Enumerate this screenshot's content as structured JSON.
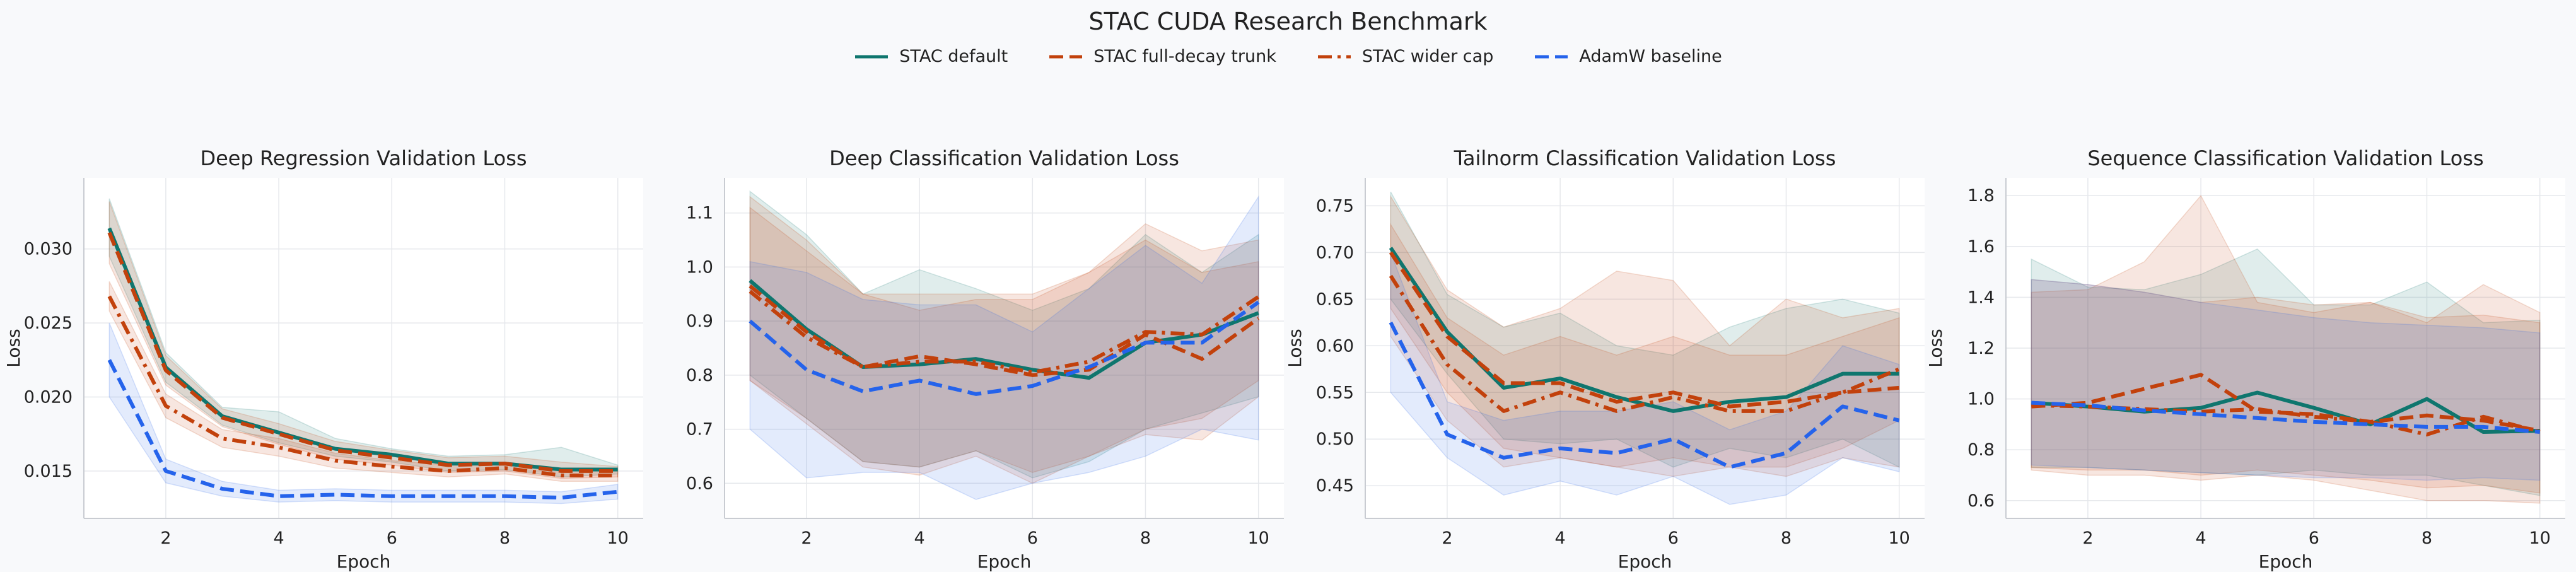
{
  "figure": {
    "title": "STAC CUDA Research Benchmark"
  },
  "legend": [
    {
      "name": "STAC default",
      "color": "#0f766e",
      "dash": "solid"
    },
    {
      "name": "STAC full-decay trunk",
      "color": "#c2410c",
      "dash": "dashed"
    },
    {
      "name": "STAC wider cap",
      "color": "#c2410c",
      "dash": "dashdot"
    },
    {
      "name": "AdamW baseline",
      "color": "#2563eb",
      "dash": "dashed"
    }
  ],
  "chart_data": [
    {
      "type": "line",
      "title": "Deep Regression Validation Loss",
      "xlabel": "Epoch",
      "ylabel": "Loss",
      "x": [
        1,
        2,
        3,
        4,
        5,
        6,
        7,
        8,
        9,
        10
      ],
      "xlim": [
        0.55,
        10.45
      ],
      "ylim": [
        0.0118,
        0.0348
      ],
      "xticks": [
        "2",
        "4",
        "6",
        "8",
        "10"
      ],
      "yticks": [
        "0.015",
        "0.020",
        "0.025",
        "0.030"
      ],
      "grid": true,
      "series": [
        {
          "name": "STAC default",
          "color": "#0f766e",
          "dash": "solid",
          "values": [
            0.0314,
            0.022,
            0.0187,
            0.0176,
            0.0165,
            0.0161,
            0.0155,
            0.0155,
            0.0151,
            0.0151
          ],
          "lower": [
            0.0295,
            0.021,
            0.0181,
            0.0169,
            0.016,
            0.0156,
            0.015,
            0.0151,
            0.0146,
            0.0148
          ],
          "upper": [
            0.0334,
            0.023,
            0.0193,
            0.019,
            0.0172,
            0.0165,
            0.016,
            0.0161,
            0.0166,
            0.0154
          ]
        },
        {
          "name": "STAC full-decay trunk",
          "color": "#c2410c",
          "dash": "dashed",
          "values": [
            0.0311,
            0.0218,
            0.0186,
            0.0175,
            0.0164,
            0.0159,
            0.0154,
            0.0155,
            0.015,
            0.015
          ],
          "lower": [
            0.029,
            0.0208,
            0.018,
            0.0168,
            0.0158,
            0.0154,
            0.0149,
            0.015,
            0.0145,
            0.0146
          ],
          "upper": [
            0.0332,
            0.0228,
            0.0192,
            0.0182,
            0.017,
            0.0164,
            0.0159,
            0.016,
            0.0156,
            0.0153
          ]
        },
        {
          "name": "STAC wider cap",
          "color": "#c2410c",
          "dash": "dashdot",
          "values": [
            0.0268,
            0.0194,
            0.0172,
            0.0166,
            0.0157,
            0.0153,
            0.015,
            0.0152,
            0.0147,
            0.0147
          ],
          "lower": [
            0.0258,
            0.0186,
            0.0166,
            0.016,
            0.0152,
            0.0149,
            0.0146,
            0.0148,
            0.0143,
            0.0143
          ],
          "upper": [
            0.0278,
            0.0202,
            0.0178,
            0.0172,
            0.0162,
            0.0157,
            0.0154,
            0.0156,
            0.0151,
            0.0151
          ]
        },
        {
          "name": "AdamW baseline",
          "color": "#2563eb",
          "dash": "dashed",
          "values": [
            0.0225,
            0.015,
            0.0138,
            0.0133,
            0.0134,
            0.0133,
            0.0133,
            0.0133,
            0.0132,
            0.0136
          ],
          "lower": [
            0.02,
            0.0142,
            0.0133,
            0.0129,
            0.013,
            0.0129,
            0.0129,
            0.0129,
            0.0128,
            0.0131
          ],
          "upper": [
            0.025,
            0.0158,
            0.0143,
            0.0137,
            0.0138,
            0.0137,
            0.0137,
            0.0137,
            0.0136,
            0.0141
          ]
        }
      ]
    },
    {
      "type": "line",
      "title": "Deep Classification Validation Loss",
      "xlabel": "Epoch",
      "ylabel": "",
      "x": [
        1,
        2,
        3,
        4,
        5,
        6,
        7,
        8,
        9,
        10
      ],
      "xlim": [
        0.55,
        10.45
      ],
      "ylim": [
        0.535,
        1.165
      ],
      "xticks": [
        "2",
        "4",
        "6",
        "8",
        "10"
      ],
      "yticks": [
        "0.6",
        "0.7",
        "0.8",
        "0.9",
        "1.0",
        "1.1"
      ],
      "grid": true,
      "series": [
        {
          "name": "STAC default",
          "color": "#0f766e",
          "dash": "solid",
          "values": [
            0.975,
            0.885,
            0.815,
            0.82,
            0.83,
            0.81,
            0.795,
            0.86,
            0.875,
            0.915
          ],
          "lower": [
            0.8,
            0.72,
            0.64,
            0.63,
            0.66,
            0.61,
            0.64,
            0.7,
            0.73,
            0.76
          ],
          "upper": [
            1.14,
            1.06,
            0.95,
            0.995,
            0.96,
            0.92,
            0.96,
            1.06,
            0.99,
            1.06
          ]
        },
        {
          "name": "STAC full-decay trunk",
          "color": "#c2410c",
          "dash": "dashed",
          "values": [
            0.965,
            0.88,
            0.815,
            0.835,
            0.82,
            0.8,
            0.81,
            0.875,
            0.83,
            0.905
          ],
          "lower": [
            0.79,
            0.71,
            0.63,
            0.615,
            0.65,
            0.6,
            0.65,
            0.69,
            0.68,
            0.76
          ],
          "upper": [
            1.13,
            1.05,
            0.95,
            0.92,
            0.94,
            0.94,
            0.99,
            1.05,
            0.99,
            1.01
          ]
        },
        {
          "name": "STAC wider cap",
          "color": "#c2410c",
          "dash": "dashdot",
          "values": [
            0.955,
            0.87,
            0.815,
            0.825,
            0.825,
            0.805,
            0.825,
            0.88,
            0.875,
            0.945
          ],
          "lower": [
            0.79,
            0.72,
            0.64,
            0.63,
            0.66,
            0.62,
            0.65,
            0.7,
            0.72,
            0.79
          ],
          "upper": [
            1.11,
            1.03,
            0.95,
            0.95,
            0.95,
            0.95,
            0.99,
            1.08,
            1.03,
            1.05
          ]
        },
        {
          "name": "AdamW baseline",
          "color": "#2563eb",
          "dash": "dashed",
          "values": [
            0.9,
            0.81,
            0.77,
            0.79,
            0.765,
            0.78,
            0.815,
            0.86,
            0.86,
            0.935
          ],
          "lower": [
            0.7,
            0.61,
            0.62,
            0.62,
            0.57,
            0.6,
            0.62,
            0.65,
            0.7,
            0.68
          ],
          "upper": [
            1.01,
            0.99,
            0.94,
            0.93,
            0.93,
            0.88,
            0.96,
            1.04,
            0.97,
            1.13
          ]
        }
      ]
    },
    {
      "type": "line",
      "title": "Tailnorm Classification Validation Loss",
      "xlabel": "Epoch",
      "ylabel": "Loss",
      "x": [
        1,
        2,
        3,
        4,
        5,
        6,
        7,
        8,
        9,
        10
      ],
      "xlim": [
        0.55,
        10.45
      ],
      "ylim": [
        0.415,
        0.78
      ],
      "xticks": [
        "2",
        "4",
        "6",
        "8",
        "10"
      ],
      "yticks": [
        "0.45",
        "0.50",
        "0.55",
        "0.60",
        "0.65",
        "0.70",
        "0.75"
      ],
      "grid": true,
      "series": [
        {
          "name": "STAC default",
          "color": "#0f766e",
          "dash": "solid",
          "values": [
            0.705,
            0.615,
            0.555,
            0.565,
            0.545,
            0.53,
            0.54,
            0.545,
            0.57,
            0.57
          ],
          "lower": [
            0.65,
            0.57,
            0.5,
            0.495,
            0.5,
            0.47,
            0.49,
            0.48,
            0.5,
            0.47
          ],
          "upper": [
            0.765,
            0.655,
            0.62,
            0.635,
            0.6,
            0.59,
            0.62,
            0.64,
            0.65,
            0.635
          ]
        },
        {
          "name": "STAC full-decay trunk",
          "color": "#c2410c",
          "dash": "dashed",
          "values": [
            0.7,
            0.61,
            0.56,
            0.56,
            0.54,
            0.55,
            0.535,
            0.54,
            0.55,
            0.555
          ],
          "lower": [
            0.64,
            0.55,
            0.49,
            0.48,
            0.47,
            0.46,
            0.47,
            0.46,
            0.48,
            0.47
          ],
          "upper": [
            0.76,
            0.66,
            0.62,
            0.64,
            0.68,
            0.67,
            0.6,
            0.65,
            0.63,
            0.64
          ]
        },
        {
          "name": "STAC wider cap",
          "color": "#c2410c",
          "dash": "dashdot",
          "values": [
            0.675,
            0.58,
            0.53,
            0.55,
            0.53,
            0.545,
            0.53,
            0.53,
            0.55,
            0.575
          ],
          "lower": [
            0.61,
            0.52,
            0.47,
            0.48,
            0.47,
            0.48,
            0.47,
            0.47,
            0.49,
            0.52
          ],
          "upper": [
            0.73,
            0.63,
            0.59,
            0.61,
            0.59,
            0.61,
            0.59,
            0.59,
            0.61,
            0.63
          ]
        },
        {
          "name": "AdamW baseline",
          "color": "#2563eb",
          "dash": "dashed",
          "values": [
            0.625,
            0.505,
            0.48,
            0.49,
            0.485,
            0.5,
            0.47,
            0.485,
            0.535,
            0.52
          ],
          "lower": [
            0.55,
            0.48,
            0.44,
            0.455,
            0.44,
            0.46,
            0.43,
            0.44,
            0.48,
            0.465
          ],
          "upper": [
            0.7,
            0.54,
            0.52,
            0.53,
            0.53,
            0.54,
            0.51,
            0.53,
            0.6,
            0.58
          ]
        }
      ]
    },
    {
      "type": "line",
      "title": "Sequence Classification Validation Loss",
      "xlabel": "Epoch",
      "ylabel": "Loss",
      "x": [
        1,
        2,
        3,
        4,
        5,
        6,
        7,
        8,
        9,
        10
      ],
      "xlim": [
        0.55,
        10.45
      ],
      "ylim": [
        0.53,
        1.87
      ],
      "xticks": [
        "2",
        "4",
        "6",
        "8",
        "10"
      ],
      "yticks": [
        "0.6",
        "0.8",
        "1.0",
        "1.2",
        "1.4",
        "1.6",
        "1.8"
      ],
      "grid": true,
      "series": [
        {
          "name": "STAC default",
          "color": "#0f766e",
          "dash": "solid",
          "values": [
            0.985,
            0.97,
            0.95,
            0.965,
            1.025,
            0.965,
            0.9,
            1.0,
            0.87,
            0.875
          ],
          "lower": [
            0.73,
            0.73,
            0.72,
            0.71,
            0.7,
            0.72,
            0.7,
            0.7,
            0.66,
            0.62
          ],
          "upper": [
            1.55,
            1.44,
            1.43,
            1.49,
            1.59,
            1.37,
            1.37,
            1.46,
            1.3,
            1.31
          ]
        },
        {
          "name": "STAC full-decay trunk",
          "color": "#c2410c",
          "dash": "dashed",
          "values": [
            0.97,
            0.985,
            1.04,
            1.095,
            0.95,
            0.94,
            0.91,
            0.935,
            0.915,
            0.875
          ],
          "lower": [
            0.72,
            0.7,
            0.7,
            0.68,
            0.7,
            0.68,
            0.64,
            0.6,
            0.6,
            0.59
          ],
          "upper": [
            1.42,
            1.43,
            1.54,
            1.8,
            1.38,
            1.34,
            1.38,
            1.3,
            1.45,
            1.34
          ]
        },
        {
          "name": "STAC wider cap",
          "color": "#c2410c",
          "dash": "dashdot",
          "values": [
            0.975,
            0.97,
            0.96,
            0.95,
            0.96,
            0.93,
            0.91,
            0.86,
            0.93,
            0.87
          ],
          "lower": [
            0.73,
            0.72,
            0.72,
            0.7,
            0.72,
            0.7,
            0.68,
            0.65,
            0.66,
            0.63
          ],
          "upper": [
            1.47,
            1.45,
            1.42,
            1.38,
            1.4,
            1.37,
            1.38,
            1.32,
            1.33,
            1.3
          ]
        },
        {
          "name": "AdamW baseline",
          "color": "#2563eb",
          "dash": "dashed",
          "values": [
            0.985,
            0.975,
            0.955,
            0.94,
            0.925,
            0.91,
            0.9,
            0.89,
            0.89,
            0.87
          ],
          "lower": [
            0.74,
            0.73,
            0.72,
            0.71,
            0.7,
            0.69,
            0.69,
            0.68,
            0.69,
            0.68
          ],
          "upper": [
            1.47,
            1.45,
            1.42,
            1.38,
            1.35,
            1.32,
            1.3,
            1.29,
            1.28,
            1.26
          ]
        }
      ]
    }
  ]
}
